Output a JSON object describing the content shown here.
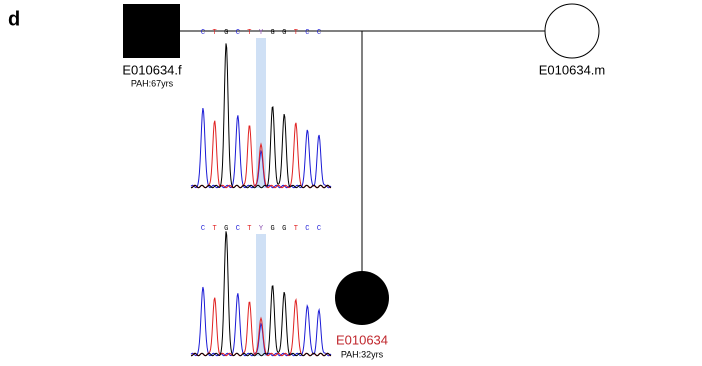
{
  "panel_label": "d",
  "father": {
    "id": "E010634.f",
    "note": "PAH:67yrs"
  },
  "mother": {
    "id": "E010634.m"
  },
  "proband": {
    "id": "E010634",
    "note": "PAH:32yrs"
  },
  "chromatograms": [
    {
      "sequence": [
        "C",
        "T",
        "G",
        "C",
        "T",
        "Y",
        "G",
        "G",
        "T",
        "C",
        "C"
      ]
    },
    {
      "sequence": [
        "C",
        "T",
        "G",
        "C",
        "T",
        "Y",
        "G",
        "G",
        "T",
        "C",
        "C"
      ]
    }
  ]
}
